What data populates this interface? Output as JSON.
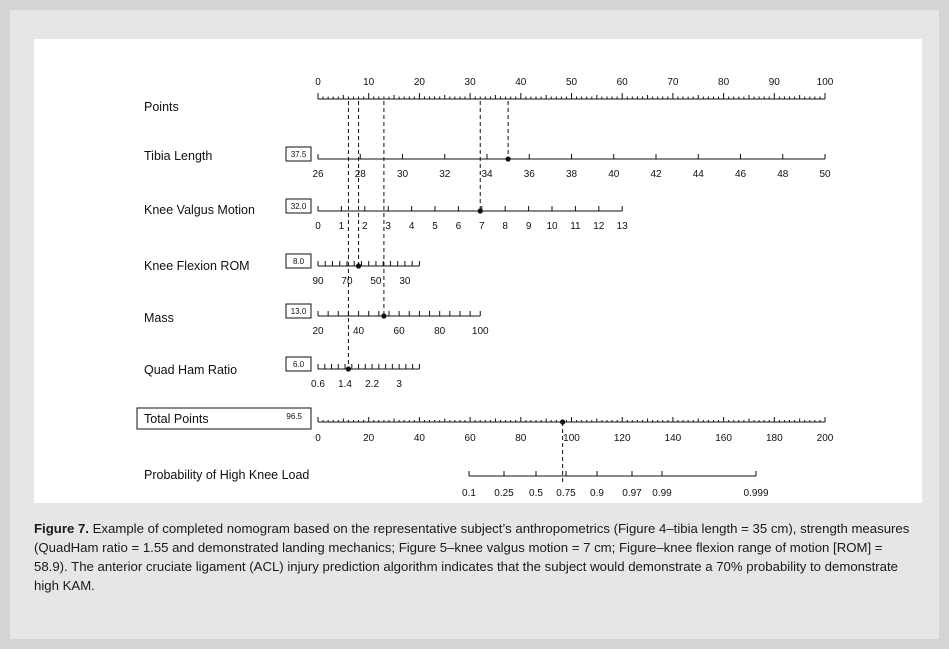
{
  "colors": {
    "outer_background": "#d4d4d4",
    "panel_background": "#e6e6e6",
    "chart_background": "#ffffff",
    "ink": "#111111"
  },
  "caption": {
    "label": "Figure 7.",
    "text": " Example of completed nomogram based on the representative subject’s anthropometrics (Figure 4–tibia length = 35 cm), strength measures (QuadHam ratio = 1.55 and demonstrated landing mechanics; Figure 5–knee valgus motion = 7 cm; Figure–knee flexion range of motion [ROM] = 58.9). The anterior cruciate ligament (ACL) injury prediction algorithm indicates that the subject would demonstrate a 70% probability to demonstrate high KAM."
  },
  "chart_data": {
    "type": "nomogram",
    "points_scale": {
      "label": "Points",
      "min": 0,
      "max": 100,
      "tick_labels": [
        "0",
        "10",
        "20",
        "30",
        "40",
        "50",
        "60",
        "70",
        "80",
        "90",
        "100"
      ]
    },
    "variables": [
      {
        "label": "Tibia Length",
        "points": "37.5",
        "value": 35,
        "scale_min": 26,
        "scale_max": 50,
        "points_at_min": 0,
        "points_at_max": 100,
        "tick_labels": [
          "26",
          "28",
          "30",
          "32",
          "34",
          "36",
          "38",
          "40",
          "42",
          "44",
          "46",
          "48",
          "50"
        ]
      },
      {
        "label": "Knee Valgus Motion",
        "points": "32.0",
        "value": 7,
        "scale_min": 0,
        "scale_max": 13,
        "points_at_min": 0,
        "points_at_max": 60,
        "tick_labels": [
          "0",
          "1",
          "2",
          "3",
          "4",
          "5",
          "6",
          "7",
          "8",
          "9",
          "10",
          "11",
          "12",
          "13"
        ]
      },
      {
        "label": "Knee Flexion ROM",
        "points": "8.0",
        "value": 58.9,
        "scale_min": 90,
        "scale_max": 20,
        "points_at_min": 0,
        "points_at_max": 20,
        "tick_labels": [
          "90",
          "70",
          "50",
          "30"
        ]
      },
      {
        "label": "Mass",
        "points": "13.0",
        "value": 48,
        "scale_min": 20,
        "scale_max": 100,
        "points_at_min": 0,
        "points_at_max": 32,
        "tick_labels": [
          "20",
          "40",
          "60",
          "80",
          "100"
        ]
      },
      {
        "label": "Quad Ham Ratio",
        "points": "6.0",
        "value": 1.55,
        "scale_min": 0.6,
        "scale_max": 3.6,
        "points_at_min": 0,
        "points_at_max": 20,
        "tick_labels": [
          "0.6",
          "1.4",
          "2.2",
          "3"
        ]
      }
    ],
    "total_points": {
      "label": "Total Points",
      "points": "96.5",
      "value": 96.5,
      "min": 0,
      "max": 200,
      "tick_labels": [
        "0",
        "20",
        "40",
        "60",
        "80",
        "100",
        "120",
        "140",
        "160",
        "180",
        "200"
      ]
    },
    "probability": {
      "label": "Probability of High Knee Load",
      "value": 0.7,
      "tick_labels": [
        "0.1",
        "0.25",
        "0.5",
        "0.75",
        "0.9",
        "0.97",
        "0.99",
        "0.999"
      ],
      "tick_values": [
        0.1,
        0.25,
        0.5,
        0.75,
        0.9,
        0.97,
        0.99,
        0.999
      ]
    }
  }
}
